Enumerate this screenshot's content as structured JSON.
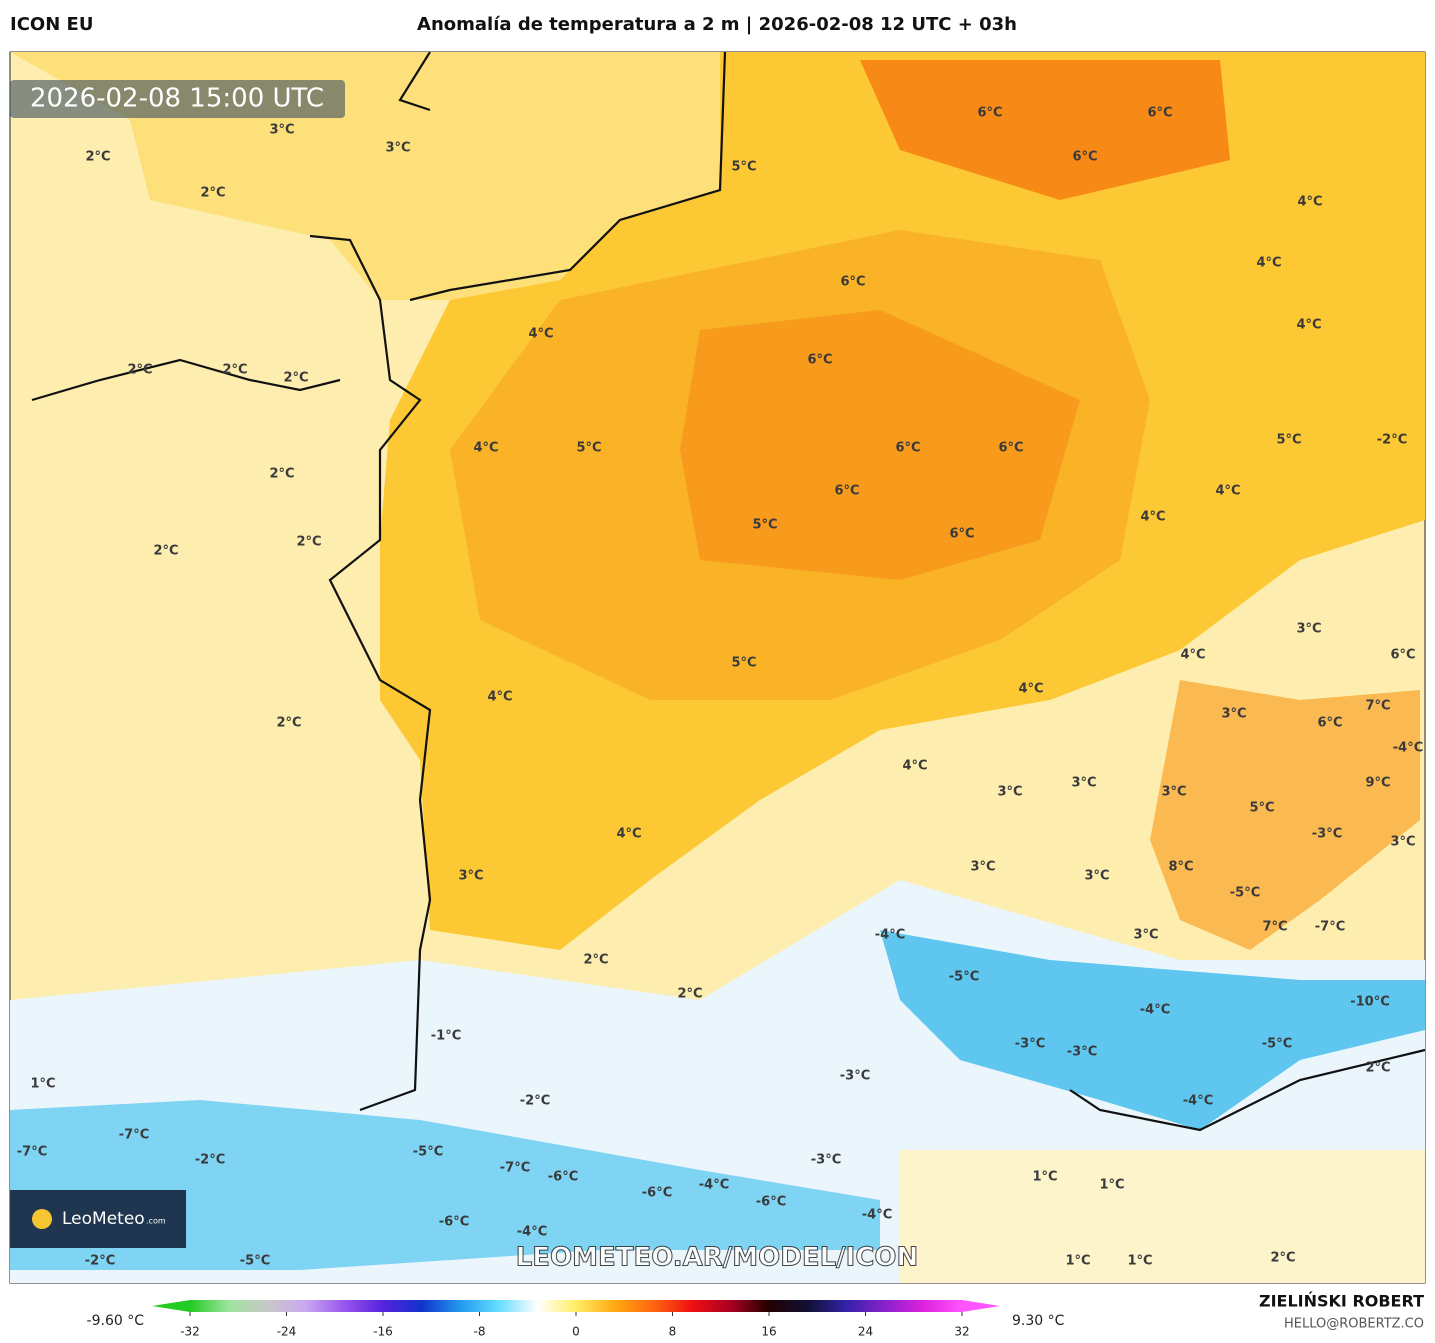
{
  "header": {
    "model": "ICON EU",
    "title": "Anomalía de temperatura a 2 m | 2026-02-08 12 UTC + 03h"
  },
  "timestamp": "2026-02-08 15:00 UTC",
  "watermark": "LEOMETEO.AR/MODEL/ICON",
  "logo": {
    "name": "LeoMeteo",
    "suffix": ".com"
  },
  "author": {
    "name": "ZIELIŃSKI ROBERT",
    "email": "HELLO@ROBERTZ.CO"
  },
  "colorbar": {
    "min": {
      "value": -9.6,
      "label": "-9.60 °C"
    },
    "max": {
      "value": 9.3,
      "label": "9.30 °C"
    },
    "lim": [
      -32,
      32
    ],
    "ticks": [
      -32,
      -24,
      -16,
      -8,
      0,
      8,
      16,
      24,
      32
    ],
    "colors": [
      "#22cc22",
      "#9ee39e",
      "#c8c8c8",
      "#c9a8f0",
      "#9955ee",
      "#5522dd",
      "#1133cc",
      "#2299ee",
      "#66ddff",
      "#ffffff",
      "#ffee66",
      "#ffaa11",
      "#ff6611",
      "#ee1111",
      "#aa0022",
      "#220000",
      "#111133",
      "#3322aa",
      "#8822cc",
      "#dd22dd",
      "#ff55ff"
    ]
  },
  "contour_labels": [
    "3°C",
    "3°C",
    "2°C",
    "2°C",
    "5°C",
    "6°C",
    "6°C",
    "6°C",
    "4°C",
    "4°C",
    "4°C",
    "6°C",
    "4°C",
    "6°C",
    "2°C",
    "2°C",
    "2°C",
    "5°C",
    "-2°C",
    "4°C",
    "5°C",
    "6°C",
    "6°C",
    "6°C",
    "4°C",
    "2°C",
    "4°C",
    "5°C",
    "6°C",
    "2°C",
    "2°C",
    "3°C",
    "6°C",
    "4°C",
    "5°C",
    "4°C",
    "4°C",
    "2°C",
    "3°C",
    "7°C",
    "6°C",
    "-4°C",
    "4°C",
    "3°C",
    "3°C",
    "3°C",
    "9°C",
    "5°C",
    "-3°C",
    "3°C",
    "4°C",
    "8°C",
    "3°C",
    "3°C",
    "3°C",
    "-5°C",
    "7°C",
    "-7°C",
    "-4°C",
    "3°C",
    "2°C",
    "-5°C",
    "2°C",
    "-10°C",
    "-4°C",
    "-1°C",
    "-3°C",
    "-3°C",
    "-5°C",
    "1°C",
    "2°C",
    "-3°C",
    "-2°C",
    "-4°C",
    "-7°C",
    "-7°C",
    "-5°C",
    "-2°C",
    "-3°C",
    "-7°C",
    "-6°C",
    "1°C",
    "1°C",
    "-4°C",
    "-6°C",
    "-6°C",
    "-4°C",
    "-6°C",
    "-4°C",
    "-2°C",
    "-5°C",
    "1°C",
    "1°C",
    "2°C"
  ]
}
